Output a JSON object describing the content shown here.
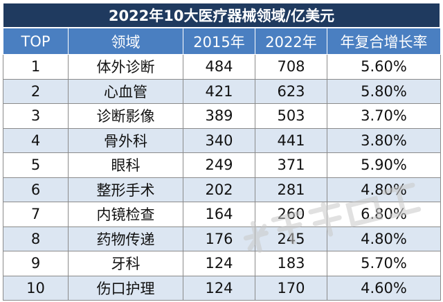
{
  "title": "2022年10大医疗器械领域/亿美元",
  "columns": [
    "TOP",
    "领域",
    "2015年",
    "2022年",
    "年复合增长率"
  ],
  "rows": [
    {
      "rank": "1",
      "field": "体外诊断",
      "y2015": "484",
      "y2022": "708",
      "cagr": "5.60%"
    },
    {
      "rank": "2",
      "field": "心血管",
      "y2015": "421",
      "y2022": "623",
      "cagr": "5.80%"
    },
    {
      "rank": "3",
      "field": "诊断影像",
      "y2015": "389",
      "y2022": "503",
      "cagr": "3.70%"
    },
    {
      "rank": "4",
      "field": "骨外科",
      "y2015": "340",
      "y2022": "441",
      "cagr": "3.80%"
    },
    {
      "rank": "5",
      "field": "眼科",
      "y2015": "249",
      "y2022": "371",
      "cagr": "5.90%"
    },
    {
      "rank": "6",
      "field": "整形手术",
      "y2015": "202",
      "y2022": "281",
      "cagr": "4.80%"
    },
    {
      "rank": "7",
      "field": "内镜检查",
      "y2015": "164",
      "y2022": "260",
      "cagr": "6.80%"
    },
    {
      "rank": "8",
      "field": "药物传递",
      "y2015": "176",
      "y2022": "245",
      "cagr": "4.80%"
    },
    {
      "rank": "9",
      "field": "牙科",
      "y2015": "124",
      "y2022": "183",
      "cagr": "5.70%"
    },
    {
      "rank": "10",
      "field": "伤口护理",
      "y2015": "124",
      "y2022": "170",
      "cagr": "4.60%"
    }
  ],
  "colors": {
    "title_bg": "#1f3a5f",
    "header_bg": "#4a7fc1",
    "stripe_bg": "#dce6f2",
    "watermark": "#c9c9c9"
  }
}
